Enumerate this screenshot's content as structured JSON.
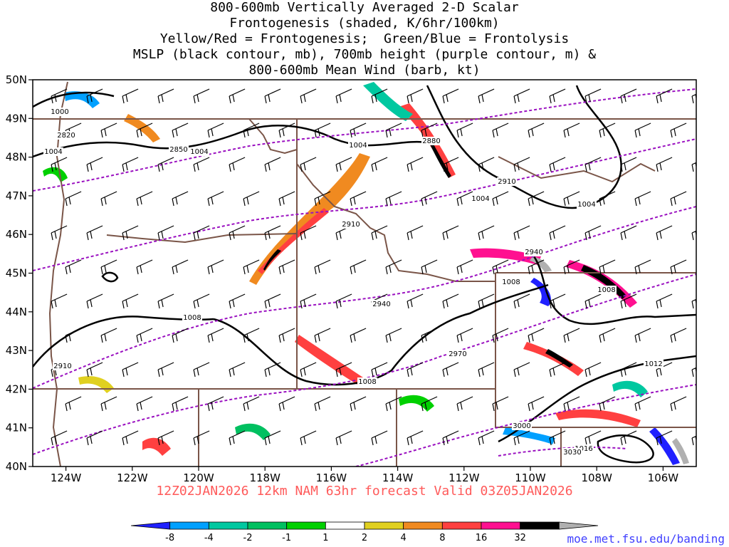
{
  "title_lines": [
    "800-600mb Vertically Averaged 2-D Scalar",
    "Frontogenesis (shaded, K/6hr/100km)",
    "Yellow/Red = Frontogenesis;  Green/Blue = Frontolysis",
    "MSLP (black contour, mb), 700mb height (purple contour, m) &",
    "800-600mb Mean Wind (barb, kt)"
  ],
  "subtitle": "12Z02JAN2026 12km NAM 63hr forecast Valid 03Z05JAN2026",
  "credit": "moe.met.fsu.edu/banding",
  "map": {
    "lon_range": [
      -125,
      -105
    ],
    "lat_range": [
      40,
      50
    ],
    "lon_ticks": [
      "124W",
      "122W",
      "120W",
      "118W",
      "116W",
      "114W",
      "112W",
      "110W",
      "108W",
      "106W"
    ],
    "lat_ticks": [
      "50N",
      "49N",
      "48N",
      "47N",
      "46N",
      "45N",
      "44N",
      "43N",
      "42N",
      "41N",
      "40N"
    ],
    "mslp_labels": [
      "1000",
      "1004",
      "1004",
      "1004",
      "1004",
      "1004",
      "1008",
      "1008",
      "1008",
      "1008",
      "1012",
      "1016"
    ],
    "height_labels": [
      "2820",
      "2850",
      "2880",
      "2910",
      "2910",
      "2910",
      "2940",
      "2940",
      "2970",
      "3000",
      "3030"
    ]
  },
  "colorbar": {
    "labels": [
      "-8",
      "-4",
      "-2",
      "-1",
      "1",
      "2",
      "4",
      "8",
      "16",
      "32"
    ],
    "colors": [
      "#2020ff",
      "#00a0ff",
      "#00c8a0",
      "#00c060",
      "#00d000",
      "#ffffff",
      "#e0d020",
      "#f08a20",
      "#ff4040",
      "#ff1090",
      "#000000",
      "#b0b0b0"
    ]
  }
}
